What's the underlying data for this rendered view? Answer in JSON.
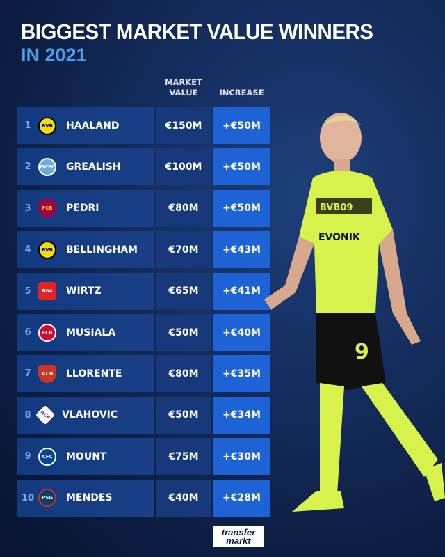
{
  "title": "BIGGEST MARKET VALUE WINNERS",
  "subtitle": "IN 2021",
  "columns": {
    "market_value": [
      "MARKET",
      "VALUE"
    ],
    "increase": "INCREASE"
  },
  "colors": {
    "accent": "#4f9be8",
    "increase_cell": "#1e63d6",
    "row": "#17397c"
  },
  "rows": [
    {
      "rank": "1",
      "club": "BVB",
      "crest": "bvb-crest",
      "player": "HAALAND",
      "value": "€150M",
      "increase": "+€50M"
    },
    {
      "rank": "2",
      "club": "MCFC",
      "crest": "man-city-crest",
      "player": "GREALISH",
      "value": "€100M",
      "increase": "+€50M"
    },
    {
      "rank": "3",
      "club": "FCB",
      "crest": "barcelona-crest",
      "player": "PEDRI",
      "value": "€80M",
      "increase": "+€50M"
    },
    {
      "rank": "4",
      "club": "BVB",
      "crest": "bvb-crest",
      "player": "BELLINGHAM",
      "value": "€70M",
      "increase": "+€43M"
    },
    {
      "rank": "5",
      "club": "B04",
      "crest": "leverkusen-crest",
      "player": "WIRTZ",
      "value": "€65M",
      "increase": "+€41M"
    },
    {
      "rank": "6",
      "club": "FCB",
      "crest": "bayern-crest",
      "player": "MUSIALA",
      "value": "€50M",
      "increase": "+€40M"
    },
    {
      "rank": "7",
      "club": "ATM",
      "crest": "atletico-crest",
      "player": "LLORENTE",
      "value": "€80M",
      "increase": "+€35M"
    },
    {
      "rank": "8",
      "club": "ACF",
      "crest": "fiorentina-crest",
      "player": "VLAHOVIC",
      "value": "€50M",
      "increase": "+€34M"
    },
    {
      "rank": "9",
      "club": "CFC",
      "crest": "chelsea-crest",
      "player": "MOUNT",
      "value": "€75M",
      "increase": "+€30M"
    },
    {
      "rank": "10",
      "club": "PSG",
      "crest": "psg-crest",
      "player": "MENDES",
      "value": "€40M",
      "increase": "+€28M"
    }
  ],
  "logo": [
    "transfer",
    "markt"
  ]
}
